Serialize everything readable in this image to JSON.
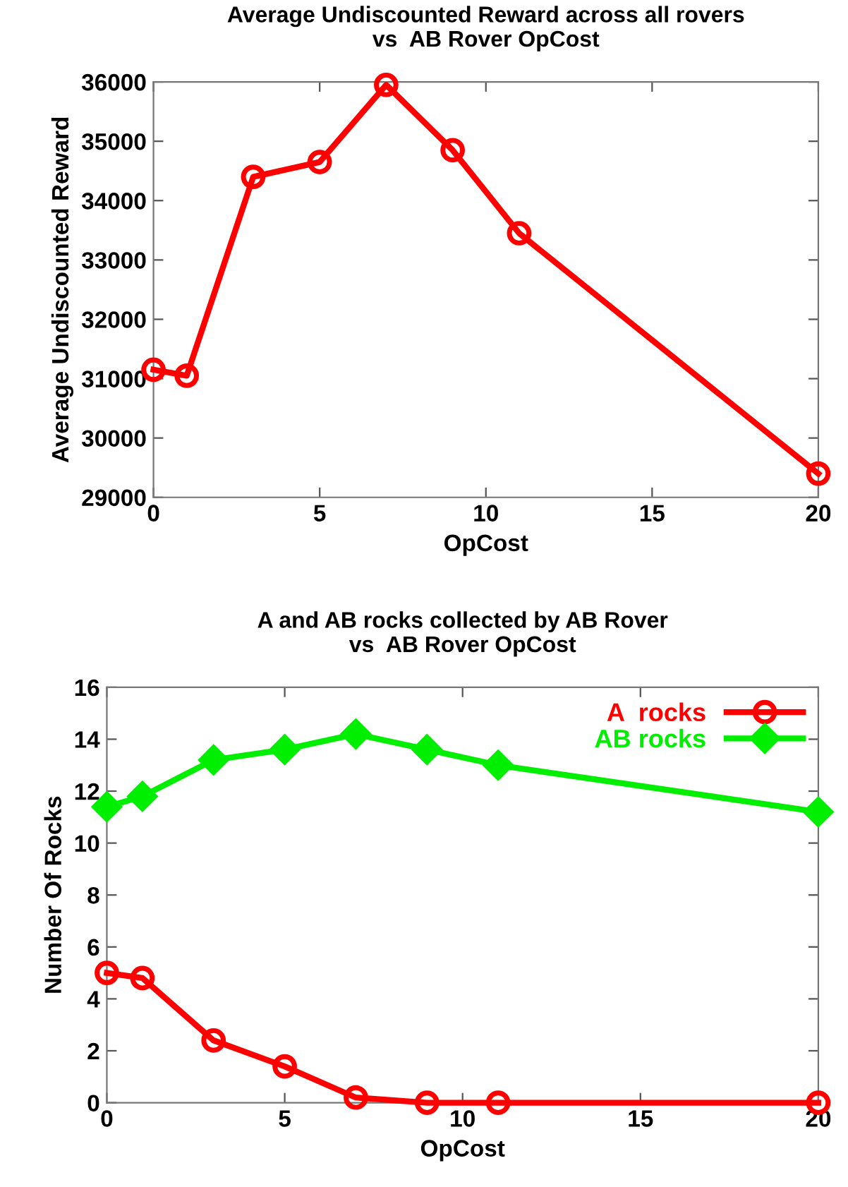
{
  "chart_data": [
    {
      "type": "line",
      "title": "Average Undiscounted Reward across all rovers\nvs  AB Rover OpCost",
      "xlabel": "OpCost",
      "ylabel": "Average Undiscounted Reward",
      "x": [
        0,
        1,
        3,
        5,
        7,
        9,
        11,
        20
      ],
      "series": [
        {
          "color": "#ff0000",
          "values": [
            31150,
            31050,
            34400,
            34650,
            35950,
            34850,
            33450,
            29400
          ]
        }
      ],
      "xlim": [
        0,
        20
      ],
      "xticks": [
        0,
        5,
        10,
        15,
        20
      ],
      "ylim": [
        29000,
        36000
      ],
      "yticks": [
        29000,
        30000,
        31000,
        32000,
        33000,
        34000,
        35000,
        36000
      ],
      "marker": "circle",
      "line_style": "solid",
      "grid": false,
      "legend": false
    },
    {
      "type": "line",
      "title": "A and AB rocks collected by AB Rover\nvs  AB Rover OpCost",
      "xlabel": "OpCost",
      "ylabel": "Number Of Rocks",
      "x": [
        0,
        1,
        3,
        5,
        7,
        9,
        11,
        20
      ],
      "series": [
        {
          "name": "A  rocks",
          "color": "#ff0000",
          "marker": "circle",
          "values": [
            5.0,
            4.8,
            2.4,
            1.4,
            0.2,
            0,
            0,
            0
          ]
        },
        {
          "name": "AB rocks",
          "color": "#00ee00",
          "marker": "diamond",
          "values": [
            11.4,
            11.8,
            13.2,
            13.6,
            14.2,
            13.6,
            13.0,
            11.2
          ]
        }
      ],
      "xlim": [
        0,
        20
      ],
      "xticks": [
        0,
        5,
        10,
        15,
        20
      ],
      "ylim": [
        0,
        16
      ],
      "yticks": [
        0,
        2,
        4,
        6,
        8,
        10,
        12,
        14,
        16
      ],
      "line_style": "solid",
      "grid": false,
      "legend": "top right"
    }
  ]
}
